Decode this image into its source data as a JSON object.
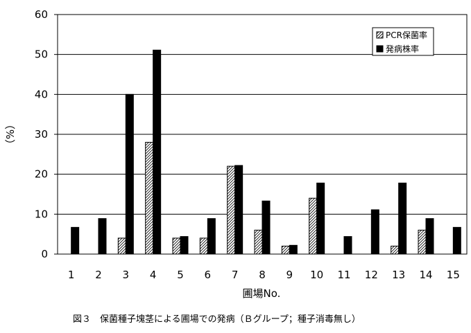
{
  "chart_data": {
    "type": "bar",
    "caption": "図３　保菌種子塊茎による圃場での発病（Ｂグループ；種子消毒無し）",
    "xlabel": "圃場No.",
    "ylabel": "（%）",
    "ylim": [
      0,
      60
    ],
    "yticks": [
      0,
      10,
      20,
      30,
      40,
      50,
      60
    ],
    "grid": true,
    "legend_position": "top-right",
    "categories": [
      "1",
      "2",
      "3",
      "4",
      "5",
      "6",
      "7",
      "8",
      "9",
      "10",
      "11",
      "12",
      "13",
      "14",
      "15"
    ],
    "series": [
      {
        "name": "PCR保菌率",
        "color": "#ffffff",
        "pattern": "hatched",
        "values": [
          0,
          0,
          4,
          28,
          4,
          4,
          22,
          6,
          2,
          14,
          0,
          0,
          2,
          6,
          0
        ]
      },
      {
        "name": "発病株率",
        "color": "#000000",
        "pattern": "solid",
        "values": [
          6.7,
          8.9,
          40,
          51.1,
          4.4,
          8.9,
          22.2,
          13.3,
          2.2,
          17.8,
          4.4,
          11.1,
          17.8,
          8.9,
          6.7
        ]
      }
    ]
  }
}
